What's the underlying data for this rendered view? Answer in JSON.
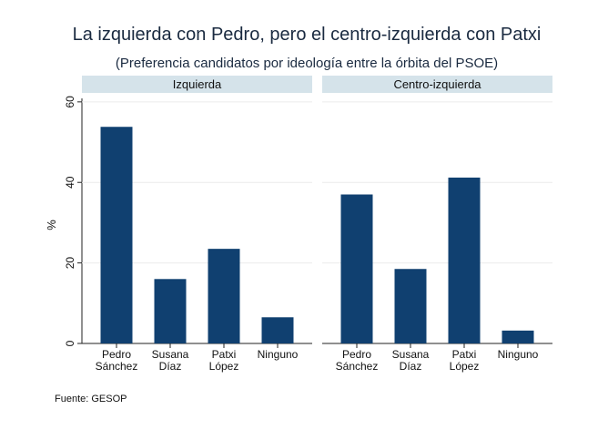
{
  "chart_data": {
    "type": "bar",
    "title": "La izquierda con Pedro, pero el centro-izquierda con Patxi",
    "subtitle": "(Preferencia candidatos por ideología entre la órbita del PSOE)",
    "ylabel": "%",
    "ylim": [
      0,
      62
    ],
    "yticks": [
      "0",
      "20",
      "40",
      "60"
    ],
    "categories": [
      [
        "Pedro",
        "Sánchez"
      ],
      [
        "Susana",
        "Díaz"
      ],
      [
        "Patxi",
        "López"
      ],
      [
        "Ninguno"
      ]
    ],
    "panels": [
      {
        "name": "Izquierda",
        "values": [
          53.8,
          16.0,
          23.5,
          6.5
        ]
      },
      {
        "name": "Centro-izquierda",
        "values": [
          37.0,
          18.5,
          41.2,
          3.2
        ]
      }
    ],
    "note": "Fuente: GESOP",
    "colors": {
      "bar": "#104070",
      "panel_header": "#d5e3ea",
      "grid": "#ececec"
    }
  }
}
